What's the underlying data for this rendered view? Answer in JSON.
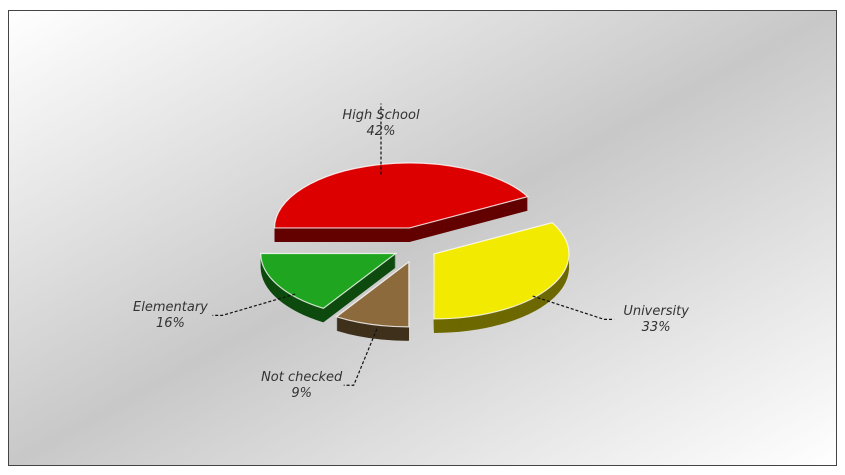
{
  "chart_data": {
    "type": "pie",
    "categories": [
      "High School",
      "University",
      "Not checked",
      "Elementary"
    ],
    "values": [
      42,
      33,
      9,
      16
    ],
    "value_labels": [
      "42%",
      "33%",
      "9%",
      "16%"
    ],
    "colors": [
      "#dd0000",
      "#f2ea00",
      "#8c6a3c",
      "#1fa51f"
    ]
  }
}
